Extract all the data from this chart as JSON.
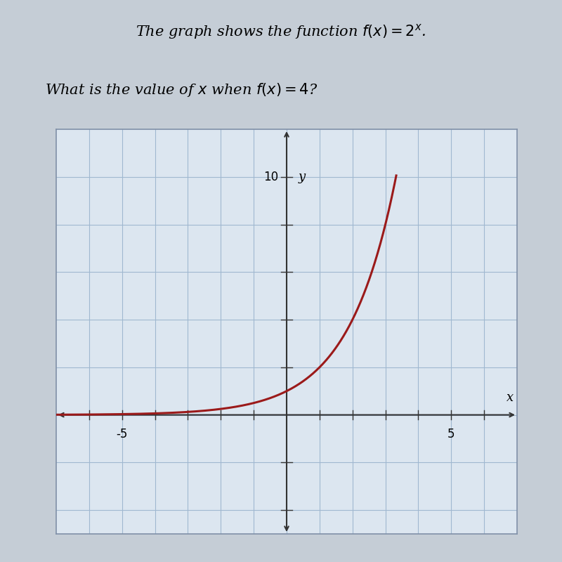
{
  "title": "The graph shows the function $f(x) = 2^x$.",
  "question": "What is the value of $x$ when $f(x) = 4$?",
  "xlim": [
    -7,
    7
  ],
  "ylim": [
    -5,
    12
  ],
  "x_label": "x",
  "y_label": "y",
  "curve_color": "#9b1a1a",
  "curve_linewidth": 2.2,
  "grid_color": "#a0b8d0",
  "grid_linewidth": 0.8,
  "axis_color": "#333333",
  "plot_bg_color": "#dce6f0",
  "outer_bg_color": "#c5cdd6",
  "title_fontsize": 15,
  "question_fontsize": 15,
  "tick_label_fontsize": 12,
  "axis_label_fontsize": 13
}
